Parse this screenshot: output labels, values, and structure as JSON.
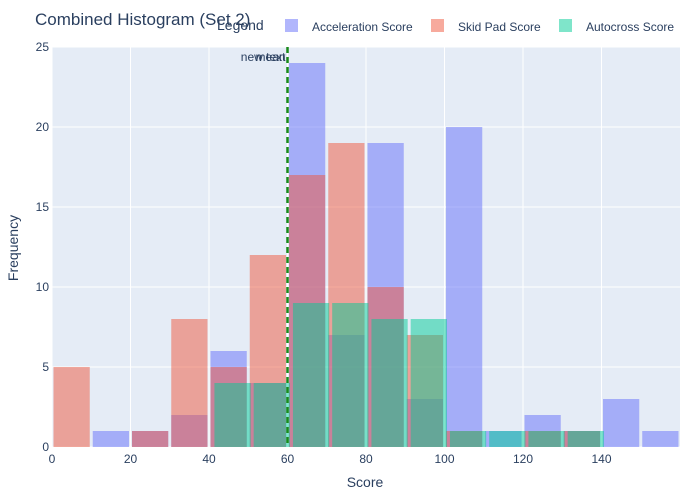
{
  "chart_data": {
    "type": "bar",
    "title": "Combined Histogram (Set 2)",
    "xlabel": "Score",
    "ylabel": "Frequency",
    "xlim": [
      0,
      160
    ],
    "ylim": [
      0,
      25
    ],
    "xticks": [
      0,
      20,
      40,
      60,
      80,
      100,
      120,
      140
    ],
    "yticks": [
      0,
      5,
      10,
      15,
      20,
      25
    ],
    "grid": true,
    "legend": {
      "title": "Legend",
      "placement": "top"
    },
    "bin_width": 10,
    "series": [
      {
        "name": "Acceleration Score",
        "color": "#636efa",
        "x_offset": 0,
        "bins": [
          {
            "x": 10,
            "count": 1
          },
          {
            "x": 20,
            "count": 1
          },
          {
            "x": 30,
            "count": 2
          },
          {
            "x": 40,
            "count": 6
          },
          {
            "x": 50,
            "count": 4
          },
          {
            "x": 60,
            "count": 24
          },
          {
            "x": 70,
            "count": 7
          },
          {
            "x": 80,
            "count": 19
          },
          {
            "x": 90,
            "count": 3
          },
          {
            "x": 100,
            "count": 20
          },
          {
            "x": 110,
            "count": 1
          },
          {
            "x": 120,
            "count": 2
          },
          {
            "x": 130,
            "count": 1
          },
          {
            "x": 140,
            "count": 3
          },
          {
            "x": 150,
            "count": 1
          }
        ]
      },
      {
        "name": "Skid Pad Score",
        "color": "#ef553b",
        "x_offset": 0,
        "bins": [
          {
            "x": 0,
            "count": 5
          },
          {
            "x": 20,
            "count": 1
          },
          {
            "x": 30,
            "count": 8
          },
          {
            "x": 40,
            "count": 5
          },
          {
            "x": 50,
            "count": 12
          },
          {
            "x": 60,
            "count": 17
          },
          {
            "x": 70,
            "count": 19
          },
          {
            "x": 80,
            "count": 10
          },
          {
            "x": 90,
            "count": 7
          },
          {
            "x": 100,
            "count": 1
          },
          {
            "x": 120,
            "count": 1
          },
          {
            "x": 130,
            "count": 1
          }
        ]
      },
      {
        "name": "Autocross Score",
        "color": "#00cc96",
        "x_offset": 1,
        "bins": [
          {
            "x": 40,
            "count": 4
          },
          {
            "x": 50,
            "count": 4
          },
          {
            "x": 60,
            "count": 9
          },
          {
            "x": 70,
            "count": 9
          },
          {
            "x": 80,
            "count": 8
          },
          {
            "x": 90,
            "count": 8
          },
          {
            "x": 100,
            "count": 1
          },
          {
            "x": 110,
            "count": 1
          },
          {
            "x": 120,
            "count": 1
          },
          {
            "x": 130,
            "count": 1
          }
        ]
      }
    ],
    "reference_line": {
      "x": 60,
      "color": "#1a8a1a",
      "style": "dashed",
      "labels": [
        "mean",
        "new text"
      ]
    }
  }
}
